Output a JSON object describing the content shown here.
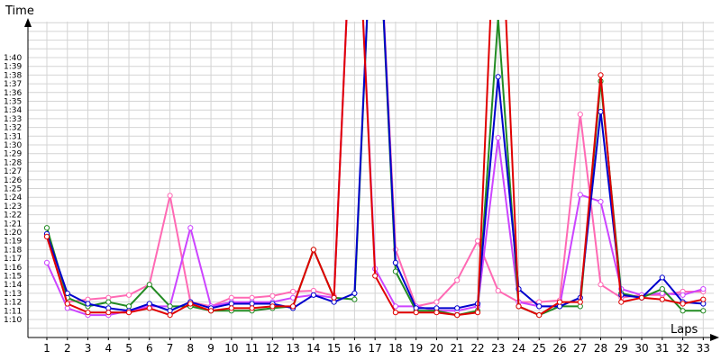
{
  "chart_data": {
    "type": "line",
    "title": "",
    "xlabel": "Laps",
    "ylabel": "Time",
    "grid": true,
    "x": [
      1,
      2,
      3,
      4,
      5,
      6,
      7,
      8,
      9,
      10,
      11,
      12,
      13,
      14,
      15,
      16,
      17,
      18,
      19,
      20,
      21,
      22,
      23,
      24,
      25,
      26,
      27,
      28,
      29,
      30,
      31,
      32,
      33
    ],
    "x_tick_labels": [
      "1",
      "2",
      "3",
      "4",
      "5",
      "6",
      "7",
      "8",
      "9",
      "10",
      "11",
      "12",
      "13",
      "14",
      "15",
      "16",
      "17",
      "18",
      "19",
      "20",
      "21",
      "22",
      "23",
      "24",
      "25",
      "26",
      "27",
      "28",
      "29",
      "30",
      "31",
      "32",
      "33"
    ],
    "ylim": [
      68,
      104
    ],
    "y_tick_values": [
      70,
      71,
      72,
      73,
      74,
      75,
      76,
      77,
      78,
      79,
      80,
      81,
      82,
      83,
      84,
      85,
      86,
      87,
      88,
      89,
      90,
      91,
      92,
      93,
      94,
      95,
      96,
      97,
      98,
      99,
      100
    ],
    "y_tick_labels": [
      "1:10",
      "1:11",
      "1:12",
      "1:13",
      "1:14",
      "1:15",
      "1:16",
      "1:17",
      "1:18",
      "1:19",
      "1:20",
      "1:21",
      "1:22",
      "1:23",
      "1:24",
      "1:25",
      "1:26",
      "1:27",
      "1:28",
      "1:29",
      "1:30",
      "1:31",
      "1:32",
      "1:33",
      "1:34",
      "1:35",
      "1:36",
      "1:37",
      "1:38",
      "1:39",
      "1:40"
    ],
    "series": [
      {
        "color": "#ff69b4",
        "values": [
          79.5,
          72.0,
          72.3,
          72.5,
          72.8,
          74.0,
          84.2,
          72.0,
          71.5,
          72.5,
          72.5,
          72.7,
          73.2,
          73.3,
          72.7,
          125.0,
          125.0,
          78.0,
          71.5,
          72.0,
          74.5,
          79.0,
          73.3,
          72.0,
          72.0,
          72.2,
          93.5,
          74.0,
          72.5,
          72.8,
          72.8,
          73.2,
          73.2
        ]
      },
      {
        "color": "#cc44ff",
        "values": [
          76.5,
          71.3,
          70.5,
          70.5,
          71.0,
          71.5,
          71.5,
          80.5,
          71.5,
          72.0,
          72.0,
          72.0,
          72.5,
          72.8,
          72.5,
          125.0,
          75.8,
          71.5,
          71.5,
          71.0,
          71.0,
          71.5,
          90.8,
          72.0,
          71.5,
          71.5,
          84.3,
          83.5,
          73.5,
          72.8,
          73.0,
          72.8,
          73.5
        ]
      },
      {
        "color": "#228b22",
        "values": [
          80.5,
          72.5,
          71.5,
          72.0,
          71.5,
          74.0,
          71.5,
          71.5,
          71.0,
          71.0,
          71.0,
          71.3,
          71.5,
          78.0,
          72.5,
          72.3,
          125.0,
          75.5,
          71.0,
          71.0,
          70.5,
          71.0,
          104.5,
          71.5,
          70.5,
          71.5,
          71.5,
          97.3,
          73.0,
          72.5,
          73.5,
          71.0,
          71.0
        ]
      },
      {
        "color": "#0000cd",
        "values": [
          79.8,
          73.0,
          71.8,
          71.3,
          71.0,
          71.8,
          71.0,
          72.0,
          71.3,
          71.8,
          71.8,
          71.8,
          71.3,
          72.8,
          72.0,
          73.0,
          125.0,
          76.5,
          71.3,
          71.3,
          71.3,
          71.8,
          97.8,
          73.5,
          71.5,
          71.5,
          72.5,
          93.8,
          72.8,
          72.5,
          74.8,
          72.0,
          71.8
        ]
      },
      {
        "color": "#e00000",
        "values": [
          79.5,
          71.8,
          70.8,
          70.8,
          70.8,
          71.3,
          70.5,
          71.8,
          71.0,
          71.3,
          71.3,
          71.5,
          71.5,
          78.0,
          72.5,
          125.0,
          75.0,
          70.8,
          70.8,
          70.8,
          70.5,
          70.8,
          125.0,
          71.5,
          70.5,
          72.0,
          72.0,
          98.0,
          72.0,
          72.5,
          72.3,
          71.8,
          72.3
        ]
      }
    ]
  }
}
